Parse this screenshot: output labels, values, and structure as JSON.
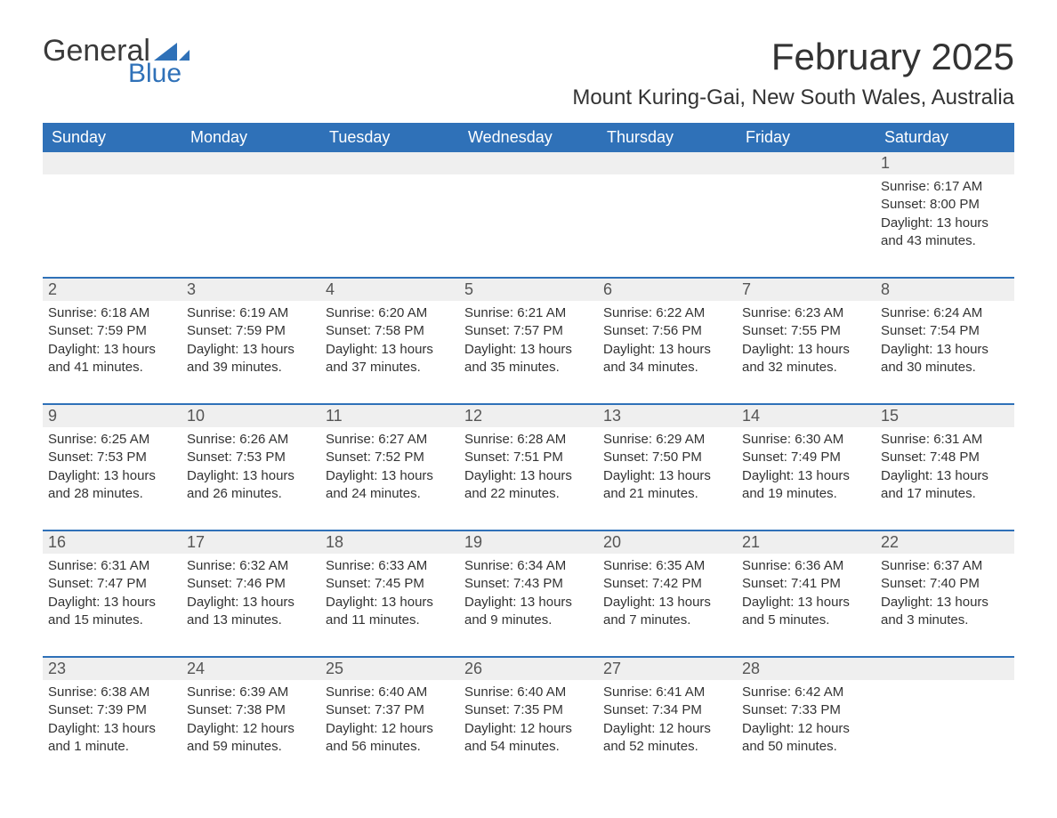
{
  "brand": {
    "general": "General",
    "blue": "Blue",
    "general_color": "#3a3a3a",
    "blue_color": "#2f71b8",
    "flag_color": "#2f71b8"
  },
  "header": {
    "month_title": "February 2025",
    "location": "Mount Kuring-Gai, New South Wales, Australia"
  },
  "colors": {
    "header_bg": "#2f71b8",
    "header_text": "#ffffff",
    "daynum_bg": "#efefef",
    "week_divider": "#2f71b8",
    "text": "#333333",
    "background": "#ffffff"
  },
  "days_of_week": [
    "Sunday",
    "Monday",
    "Tuesday",
    "Wednesday",
    "Thursday",
    "Friday",
    "Saturday"
  ],
  "weeks": [
    [
      null,
      null,
      null,
      null,
      null,
      null,
      {
        "n": "1",
        "sunrise": "Sunrise: 6:17 AM",
        "sunset": "Sunset: 8:00 PM",
        "daylight": "Daylight: 13 hours and 43 minutes."
      }
    ],
    [
      {
        "n": "2",
        "sunrise": "Sunrise: 6:18 AM",
        "sunset": "Sunset: 7:59 PM",
        "daylight": "Daylight: 13 hours and 41 minutes."
      },
      {
        "n": "3",
        "sunrise": "Sunrise: 6:19 AM",
        "sunset": "Sunset: 7:59 PM",
        "daylight": "Daylight: 13 hours and 39 minutes."
      },
      {
        "n": "4",
        "sunrise": "Sunrise: 6:20 AM",
        "sunset": "Sunset: 7:58 PM",
        "daylight": "Daylight: 13 hours and 37 minutes."
      },
      {
        "n": "5",
        "sunrise": "Sunrise: 6:21 AM",
        "sunset": "Sunset: 7:57 PM",
        "daylight": "Daylight: 13 hours and 35 minutes."
      },
      {
        "n": "6",
        "sunrise": "Sunrise: 6:22 AM",
        "sunset": "Sunset: 7:56 PM",
        "daylight": "Daylight: 13 hours and 34 minutes."
      },
      {
        "n": "7",
        "sunrise": "Sunrise: 6:23 AM",
        "sunset": "Sunset: 7:55 PM",
        "daylight": "Daylight: 13 hours and 32 minutes."
      },
      {
        "n": "8",
        "sunrise": "Sunrise: 6:24 AM",
        "sunset": "Sunset: 7:54 PM",
        "daylight": "Daylight: 13 hours and 30 minutes."
      }
    ],
    [
      {
        "n": "9",
        "sunrise": "Sunrise: 6:25 AM",
        "sunset": "Sunset: 7:53 PM",
        "daylight": "Daylight: 13 hours and 28 minutes."
      },
      {
        "n": "10",
        "sunrise": "Sunrise: 6:26 AM",
        "sunset": "Sunset: 7:53 PM",
        "daylight": "Daylight: 13 hours and 26 minutes."
      },
      {
        "n": "11",
        "sunrise": "Sunrise: 6:27 AM",
        "sunset": "Sunset: 7:52 PM",
        "daylight": "Daylight: 13 hours and 24 minutes."
      },
      {
        "n": "12",
        "sunrise": "Sunrise: 6:28 AM",
        "sunset": "Sunset: 7:51 PM",
        "daylight": "Daylight: 13 hours and 22 minutes."
      },
      {
        "n": "13",
        "sunrise": "Sunrise: 6:29 AM",
        "sunset": "Sunset: 7:50 PM",
        "daylight": "Daylight: 13 hours and 21 minutes."
      },
      {
        "n": "14",
        "sunrise": "Sunrise: 6:30 AM",
        "sunset": "Sunset: 7:49 PM",
        "daylight": "Daylight: 13 hours and 19 minutes."
      },
      {
        "n": "15",
        "sunrise": "Sunrise: 6:31 AM",
        "sunset": "Sunset: 7:48 PM",
        "daylight": "Daylight: 13 hours and 17 minutes."
      }
    ],
    [
      {
        "n": "16",
        "sunrise": "Sunrise: 6:31 AM",
        "sunset": "Sunset: 7:47 PM",
        "daylight": "Daylight: 13 hours and 15 minutes."
      },
      {
        "n": "17",
        "sunrise": "Sunrise: 6:32 AM",
        "sunset": "Sunset: 7:46 PM",
        "daylight": "Daylight: 13 hours and 13 minutes."
      },
      {
        "n": "18",
        "sunrise": "Sunrise: 6:33 AM",
        "sunset": "Sunset: 7:45 PM",
        "daylight": "Daylight: 13 hours and 11 minutes."
      },
      {
        "n": "19",
        "sunrise": "Sunrise: 6:34 AM",
        "sunset": "Sunset: 7:43 PM",
        "daylight": "Daylight: 13 hours and 9 minutes."
      },
      {
        "n": "20",
        "sunrise": "Sunrise: 6:35 AM",
        "sunset": "Sunset: 7:42 PM",
        "daylight": "Daylight: 13 hours and 7 minutes."
      },
      {
        "n": "21",
        "sunrise": "Sunrise: 6:36 AM",
        "sunset": "Sunset: 7:41 PM",
        "daylight": "Daylight: 13 hours and 5 minutes."
      },
      {
        "n": "22",
        "sunrise": "Sunrise: 6:37 AM",
        "sunset": "Sunset: 7:40 PM",
        "daylight": "Daylight: 13 hours and 3 minutes."
      }
    ],
    [
      {
        "n": "23",
        "sunrise": "Sunrise: 6:38 AM",
        "sunset": "Sunset: 7:39 PM",
        "daylight": "Daylight: 13 hours and 1 minute."
      },
      {
        "n": "24",
        "sunrise": "Sunrise: 6:39 AM",
        "sunset": "Sunset: 7:38 PM",
        "daylight": "Daylight: 12 hours and 59 minutes."
      },
      {
        "n": "25",
        "sunrise": "Sunrise: 6:40 AM",
        "sunset": "Sunset: 7:37 PM",
        "daylight": "Daylight: 12 hours and 56 minutes."
      },
      {
        "n": "26",
        "sunrise": "Sunrise: 6:40 AM",
        "sunset": "Sunset: 7:35 PM",
        "daylight": "Daylight: 12 hours and 54 minutes."
      },
      {
        "n": "27",
        "sunrise": "Sunrise: 6:41 AM",
        "sunset": "Sunset: 7:34 PM",
        "daylight": "Daylight: 12 hours and 52 minutes."
      },
      {
        "n": "28",
        "sunrise": "Sunrise: 6:42 AM",
        "sunset": "Sunset: 7:33 PM",
        "daylight": "Daylight: 12 hours and 50 minutes."
      },
      null
    ]
  ]
}
